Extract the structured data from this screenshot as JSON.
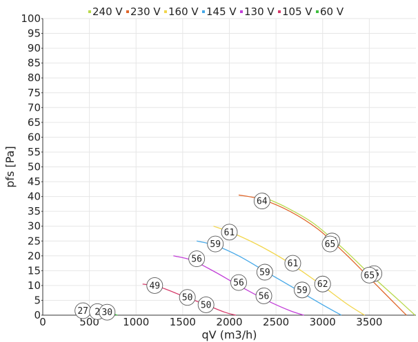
{
  "chart_data": {
    "type": "line",
    "title": "",
    "xlabel": "qV (m3/h)",
    "ylabel": "pfs [Pa]",
    "xlim": [
      0,
      4000
    ],
    "ylim": [
      0,
      100
    ],
    "x_ticks": [
      0,
      500,
      1000,
      1500,
      2000,
      2500,
      3000,
      3500
    ],
    "y_ticks": [
      0,
      5,
      10,
      15,
      20,
      25,
      30,
      35,
      40,
      45,
      50,
      55,
      60,
      65,
      70,
      75,
      80,
      85,
      90,
      95,
      100
    ],
    "grid": true,
    "legend_position": "top",
    "series": [
      {
        "name": "240 V",
        "color": "#b9d94a",
        "points": [
          [
            2350,
            40
          ],
          [
            2600,
            36.5
          ],
          [
            2900,
            31
          ],
          [
            3200,
            23
          ],
          [
            3500,
            14
          ],
          [
            3800,
            5.5
          ],
          [
            3990,
            0
          ]
        ],
        "bubbles": [
          {
            "x": 3100,
            "y": 25,
            "label": "65"
          },
          {
            "x": 3550,
            "y": 14,
            "label": "65"
          }
        ]
      },
      {
        "name": "230 V",
        "color": "#e0662a",
        "points": [
          [
            2100,
            40.5
          ],
          [
            2350,
            39
          ],
          [
            2650,
            35
          ],
          [
            2950,
            29
          ],
          [
            3250,
            20.5
          ],
          [
            3550,
            11
          ],
          [
            3850,
            1.5
          ],
          [
            3900,
            0
          ]
        ],
        "bubbles": [
          {
            "x": 2350,
            "y": 38.5,
            "label": "64"
          },
          {
            "x": 3080,
            "y": 24,
            "label": "65"
          },
          {
            "x": 3500,
            "y": 13.5,
            "label": "65"
          }
        ]
      },
      {
        "name": "160 V",
        "color": "#f2d64c",
        "points": [
          [
            1830,
            30
          ],
          [
            2050,
            27.5
          ],
          [
            2350,
            23
          ],
          [
            2650,
            17.5
          ],
          [
            2950,
            11
          ],
          [
            3250,
            4
          ],
          [
            3450,
            0
          ]
        ],
        "bubbles": [
          {
            "x": 2000,
            "y": 28,
            "label": "61"
          },
          {
            "x": 2680,
            "y": 17.5,
            "label": "61"
          },
          {
            "x": 3000,
            "y": 10.5,
            "label": "62"
          }
        ]
      },
      {
        "name": "145 V",
        "color": "#45a8e8",
        "points": [
          [
            1650,
            25
          ],
          [
            1850,
            23.5
          ],
          [
            2100,
            20
          ],
          [
            2400,
            14.5
          ],
          [
            2700,
            9
          ],
          [
            3000,
            3.5
          ],
          [
            3200,
            0
          ]
        ],
        "bubbles": [
          {
            "x": 1850,
            "y": 24,
            "label": "59"
          },
          {
            "x": 2380,
            "y": 14.5,
            "label": "59"
          },
          {
            "x": 2780,
            "y": 8.5,
            "label": "59"
          }
        ]
      },
      {
        "name": "130 V",
        "color": "#c23fd8",
        "points": [
          [
            1400,
            20
          ],
          [
            1600,
            18.5
          ],
          [
            1850,
            14.5
          ],
          [
            2100,
            10
          ],
          [
            2400,
            5
          ],
          [
            2650,
            1.5
          ],
          [
            2800,
            0
          ]
        ],
        "bubbles": [
          {
            "x": 1650,
            "y": 19,
            "label": "56"
          },
          {
            "x": 2100,
            "y": 11,
            "label": "56"
          },
          {
            "x": 2370,
            "y": 6.5,
            "label": "56"
          }
        ]
      },
      {
        "name": "105 V",
        "color": "#d63a6a",
        "points": [
          [
            1070,
            10.5
          ],
          [
            1250,
            9.5
          ],
          [
            1500,
            6.5
          ],
          [
            1750,
            3.5
          ],
          [
            1950,
            1
          ],
          [
            2070,
            0
          ]
        ],
        "bubbles": [
          {
            "x": 1200,
            "y": 10,
            "label": "49"
          },
          {
            "x": 1550,
            "y": 6,
            "label": "50"
          },
          {
            "x": 1750,
            "y": 3.5,
            "label": "50"
          }
        ]
      },
      {
        "name": "60 V",
        "color": "#3fbf3f",
        "points": [
          [
            420,
            1.5
          ],
          [
            550,
            1.3
          ],
          [
            700,
            0.8
          ],
          [
            800,
            0
          ]
        ],
        "bubbles": [
          {
            "x": 430,
            "y": 1.5,
            "label": "27"
          },
          {
            "x": 585,
            "y": 1.2,
            "label": "2"
          },
          {
            "x": 690,
            "y": 1,
            "label": "30"
          }
        ]
      }
    ]
  }
}
